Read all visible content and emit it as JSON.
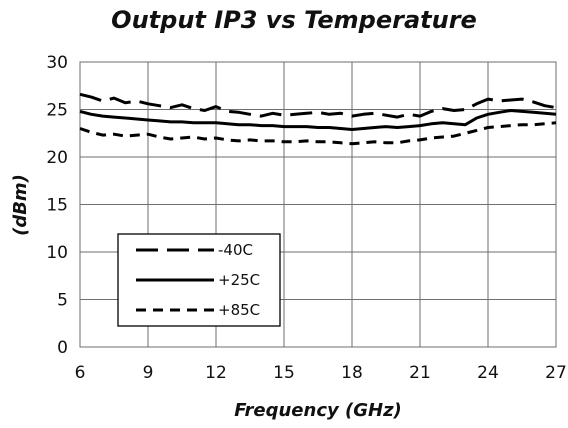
{
  "chart_data": {
    "type": "line",
    "title": "Output IP3 vs Temperature",
    "xlabel": "Frequency (GHz)",
    "ylabel": "(dBm)",
    "xlim": [
      6,
      27
    ],
    "ylim": [
      0,
      30
    ],
    "xticks": [
      6,
      9,
      12,
      15,
      18,
      21,
      24,
      27
    ],
    "yticks": [
      0,
      5,
      10,
      15,
      20,
      25,
      30
    ],
    "grid": true,
    "legend": "bottom-left",
    "series": [
      {
        "name": "-40C",
        "style": "long-dash",
        "color": "#000000",
        "x": [
          6,
          6.5,
          7,
          7.5,
          8,
          8.5,
          9,
          9.5,
          10,
          10.5,
          11,
          11.5,
          12,
          12.5,
          13,
          13.5,
          14,
          14.5,
          15,
          15.5,
          16,
          16.5,
          17,
          17.5,
          18,
          18.5,
          19,
          19.5,
          20,
          20.5,
          21,
          21.5,
          22,
          22.5,
          23,
          23.5,
          24,
          24.5,
          25,
          25.5,
          26,
          26.5,
          27
        ],
        "y": [
          26.6,
          26.3,
          25.9,
          26.2,
          25.7,
          25.9,
          25.6,
          25.4,
          25.2,
          25.5,
          25.1,
          24.9,
          25.3,
          24.8,
          24.7,
          24.5,
          24.3,
          24.6,
          24.4,
          24.5,
          24.6,
          24.7,
          24.5,
          24.6,
          24.3,
          24.5,
          24.6,
          24.4,
          24.2,
          24.5,
          24.3,
          24.8,
          25.1,
          24.9,
          25.0,
          25.6,
          26.1,
          25.9,
          26.0,
          26.1,
          25.8,
          25.4,
          25.2
        ]
      },
      {
        "name": "+25C",
        "style": "solid",
        "color": "#000000",
        "x": [
          6,
          6.5,
          7,
          7.5,
          8,
          8.5,
          9,
          9.5,
          10,
          10.5,
          11,
          11.5,
          12,
          12.5,
          13,
          13.5,
          14,
          14.5,
          15,
          15.5,
          16,
          16.5,
          17,
          17.5,
          18,
          18.5,
          19,
          19.5,
          20,
          20.5,
          21,
          21.5,
          22,
          22.5,
          23,
          23.5,
          24,
          24.5,
          25,
          25.5,
          26,
          26.5,
          27
        ],
        "y": [
          24.8,
          24.5,
          24.3,
          24.2,
          24.1,
          24.0,
          23.9,
          23.8,
          23.7,
          23.7,
          23.6,
          23.6,
          23.6,
          23.5,
          23.4,
          23.4,
          23.3,
          23.3,
          23.2,
          23.2,
          23.2,
          23.1,
          23.1,
          23.0,
          22.9,
          23.0,
          23.1,
          23.2,
          23.1,
          23.2,
          23.3,
          23.5,
          23.6,
          23.5,
          23.4,
          24.1,
          24.5,
          24.7,
          24.9,
          24.8,
          24.7,
          24.6,
          24.5
        ]
      },
      {
        "name": "+85C",
        "style": "short-dash",
        "color": "#000000",
        "x": [
          6,
          6.5,
          7,
          7.5,
          8,
          8.5,
          9,
          9.5,
          10,
          10.5,
          11,
          11.5,
          12,
          12.5,
          13,
          13.5,
          14,
          14.5,
          15,
          15.5,
          16,
          16.5,
          17,
          17.5,
          18,
          18.5,
          19,
          19.5,
          20,
          20.5,
          21,
          21.5,
          22,
          22.5,
          23,
          23.5,
          24,
          24.5,
          25,
          25.5,
          26,
          26.5,
          27
        ],
        "y": [
          23.0,
          22.6,
          22.3,
          22.4,
          22.2,
          22.3,
          22.4,
          22.1,
          21.9,
          22.0,
          22.1,
          21.9,
          22.0,
          21.8,
          21.7,
          21.8,
          21.7,
          21.7,
          21.6,
          21.6,
          21.7,
          21.6,
          21.6,
          21.5,
          21.4,
          21.5,
          21.6,
          21.5,
          21.5,
          21.7,
          21.8,
          22.0,
          22.1,
          22.2,
          22.5,
          22.8,
          23.1,
          23.2,
          23.3,
          23.4,
          23.4,
          23.5,
          23.6
        ]
      }
    ]
  }
}
